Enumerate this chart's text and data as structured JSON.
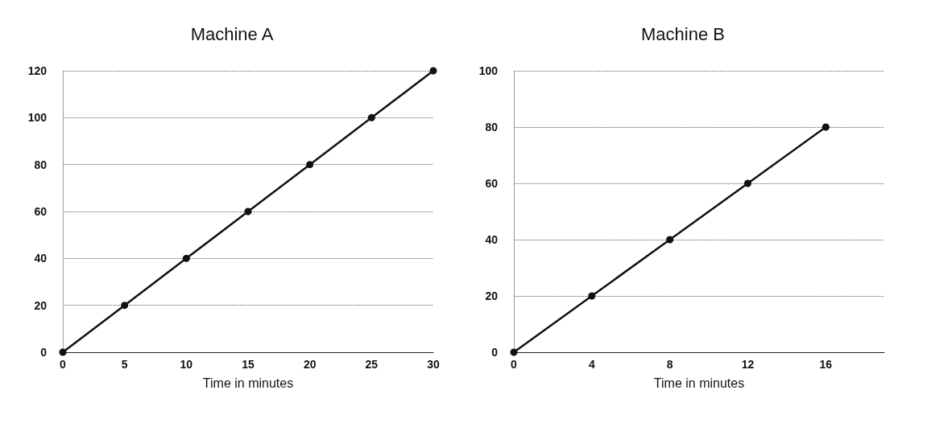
{
  "chart_data": [
    {
      "type": "line",
      "title": "Machine A",
      "xlabel": "Time in minutes",
      "x": [
        0,
        5,
        10,
        15,
        20,
        25,
        30
      ],
      "series": [
        {
          "color": "#111111",
          "values": [
            0,
            20,
            40,
            60,
            80,
            100,
            120
          ]
        }
      ],
      "xlim": [
        0,
        30
      ],
      "xticks": [
        0,
        5,
        10,
        15,
        20,
        25,
        30
      ],
      "ylim": [
        0,
        120
      ],
      "yticks": [
        0,
        20,
        40,
        60,
        80,
        100,
        120
      ],
      "grid": "y",
      "marker": "circle",
      "line_style": "solid"
    },
    {
      "type": "line",
      "title": "Machine B",
      "xlabel": "Time in minutes",
      "x": [
        0,
        4,
        8,
        12,
        16
      ],
      "series": [
        {
          "color": "#111111",
          "values": [
            0,
            20,
            40,
            60,
            80
          ]
        }
      ],
      "xlim": [
        0,
        19
      ],
      "xticks": [
        0,
        4,
        8,
        12,
        16
      ],
      "ylim": [
        0,
        100
      ],
      "yticks": [
        0,
        20,
        40,
        60,
        80,
        100
      ],
      "grid": "y",
      "marker": "circle",
      "line_style": "solid"
    }
  ]
}
